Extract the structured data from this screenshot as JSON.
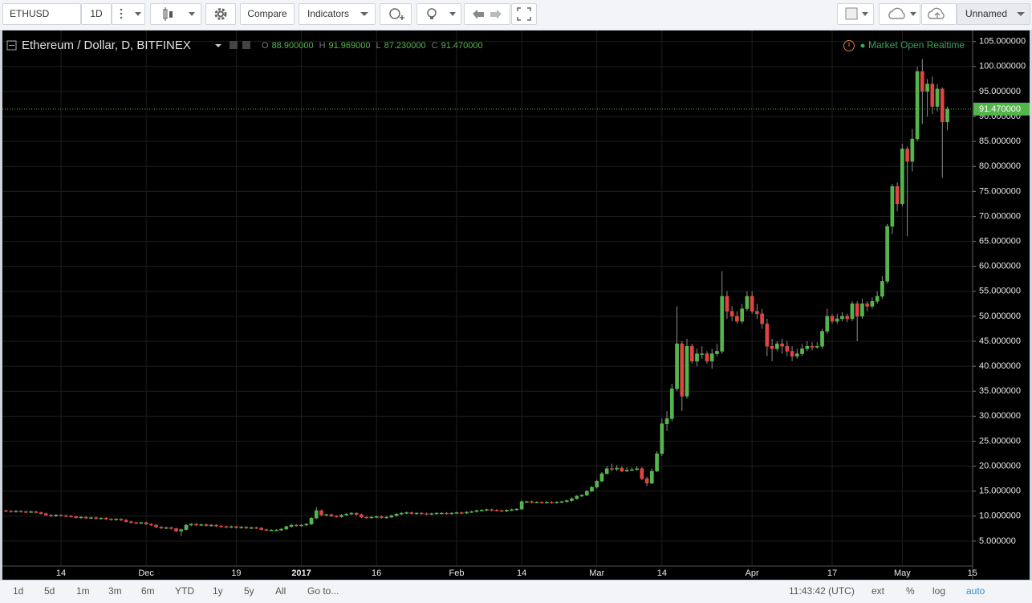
{
  "toolbar": {
    "symbol": "ETHUSD",
    "interval": "1D",
    "compare": "Compare",
    "indicators": "Indicators",
    "layout": "Unnamed"
  },
  "chart_data": {
    "type": "candlestick",
    "title": "Ethereum / Dollar, D, BITFINEX",
    "ohlc_header": [
      {
        "key": "O",
        "text": "88.900000"
      },
      {
        "key": "H",
        "text": "91.969000"
      },
      {
        "key": "L",
        "text": "87.230000"
      },
      {
        "key": "C",
        "text": "91.470000"
      }
    ],
    "status": "Market Open Realtime",
    "up_color": "#53b54b",
    "down_color": "#e04343",
    "wick_color": "#8c8c8c",
    "grid": true,
    "last_price": {
      "value": 91.47,
      "label": "91.470000"
    },
    "ylim": [
      0,
      107.2
    ],
    "yticks": [
      {
        "value": 5,
        "label": "5.000000"
      },
      {
        "value": 10,
        "label": "10.000000"
      },
      {
        "value": 15,
        "label": "15.000000"
      },
      {
        "value": 20,
        "label": "20.000000"
      },
      {
        "value": 25,
        "label": "25.000000"
      },
      {
        "value": 30,
        "label": "30.000000"
      },
      {
        "value": 35,
        "label": "35.000000"
      },
      {
        "value": 40,
        "label": "40.000000"
      },
      {
        "value": 45,
        "label": "45.000000"
      },
      {
        "value": 50,
        "label": "50.000000"
      },
      {
        "value": 55,
        "label": "55.000000"
      },
      {
        "value": 60,
        "label": "60.000000"
      },
      {
        "value": 65,
        "label": "65.000000"
      },
      {
        "value": 70,
        "label": "70.000000"
      },
      {
        "value": 75,
        "label": "75.000000"
      },
      {
        "value": 80,
        "label": "80.000000"
      },
      {
        "value": 85,
        "label": "85.000000"
      },
      {
        "value": 90,
        "label": "90.000000"
      },
      {
        "value": 95,
        "label": "95.000000"
      },
      {
        "value": 100,
        "label": "100.000000"
      },
      {
        "value": 105,
        "label": "105.000000"
      }
    ],
    "categories": [
      null,
      null,
      null,
      null,
      null,
      null,
      null,
      null,
      null,
      null,
      null,
      "14",
      null,
      null,
      null,
      null,
      null,
      null,
      null,
      null,
      null,
      null,
      null,
      null,
      null,
      null,
      null,
      null,
      "Dec",
      null,
      null,
      null,
      null,
      null,
      null,
      null,
      null,
      null,
      null,
      null,
      null,
      null,
      null,
      null,
      null,
      null,
      "19",
      null,
      null,
      null,
      null,
      null,
      null,
      null,
      null,
      null,
      null,
      null,
      null,
      "2017",
      null,
      null,
      null,
      null,
      null,
      null,
      null,
      null,
      null,
      null,
      null,
      null,
      null,
      null,
      "16",
      null,
      null,
      null,
      null,
      null,
      null,
      null,
      null,
      null,
      null,
      null,
      null,
      null,
      null,
      null,
      "Feb",
      null,
      null,
      null,
      null,
      null,
      null,
      null,
      null,
      null,
      null,
      null,
      null,
      "14",
      null,
      null,
      null,
      null,
      null,
      null,
      null,
      null,
      null,
      null,
      null,
      null,
      null,
      null,
      "Mar",
      null,
      null,
      null,
      null,
      null,
      null,
      null,
      null,
      null,
      null,
      null,
      null,
      "14",
      null,
      null,
      null,
      null,
      null,
      null,
      null,
      null,
      null,
      null,
      null,
      null,
      null,
      null,
      null,
      null,
      null,
      "Apr",
      null,
      null,
      null,
      null,
      null,
      null,
      null,
      null,
      null,
      null,
      null,
      null,
      null,
      null,
      null,
      "17",
      null,
      null,
      null,
      null,
      null,
      null,
      null,
      null,
      null,
      null,
      null,
      null,
      null,
      "May",
      null,
      null,
      null,
      null,
      null,
      null,
      null,
      null,
      null,
      null,
      null,
      null,
      null,
      "15"
    ],
    "open": [
      11.1,
      11.0,
      10.9,
      11.0,
      10.9,
      10.8,
      10.9,
      10.7,
      10.5,
      10.2,
      10.0,
      10.2,
      10.1,
      10.0,
      9.9,
      9.7,
      9.8,
      9.6,
      9.7,
      9.5,
      9.6,
      9.4,
      9.3,
      9.4,
      9.2,
      8.9,
      8.7,
      8.6,
      8.7,
      8.4,
      8.2,
      7.8,
      7.6,
      7.7,
      7.5,
      7.0,
      7.3,
      8.2,
      8.4,
      8.2,
      8.3,
      8.1,
      8.2,
      8.0,
      7.9,
      7.8,
      7.9,
      7.7,
      7.8,
      7.6,
      7.7,
      7.6,
      7.3,
      7.2,
      7.2,
      7.2,
      7.4,
      7.9,
      8.2,
      8.1,
      8.2,
      8.4,
      9.6,
      11.1,
      10.2,
      10.3,
      10.0,
      9.9,
      10.2,
      10.4,
      10.6,
      10.3,
      9.8,
      9.7,
      9.8,
      9.9,
      9.7,
      9.8,
      10.1,
      10.4,
      10.6,
      10.7,
      10.5,
      10.6,
      10.5,
      10.4,
      10.5,
      10.6,
      10.6,
      10.5,
      10.6,
      10.7,
      10.6,
      10.8,
      10.9,
      11.1,
      11.2,
      11.3,
      11.2,
      11.1,
      11.0,
      11.2,
      11.3,
      11.4,
      12.9,
      12.9,
      12.8,
      12.8,
      12.7,
      12.8,
      12.7,
      12.8,
      12.9,
      13.1,
      13.5,
      14.0,
      14.2,
      15.0,
      15.8,
      17.0,
      18.5,
      19.5,
      19.4,
      19.6,
      19.0,
      19.2,
      19.3,
      19.5,
      17.5,
      16.6,
      19.0,
      22.5,
      28.5,
      29.5,
      35.5,
      44.5,
      34.0,
      44.0,
      41.0,
      42.5,
      42.5,
      41.0,
      42.5,
      43.0,
      54.0,
      51.0,
      50.0,
      49.0,
      51.5,
      54.0,
      51.0,
      50.5,
      48.5,
      44.0,
      43.5,
      44.5,
      44.0,
      43.0,
      42.0,
      42.5,
      43.5,
      44.0,
      43.8,
      44.0,
      47.0,
      50.0,
      49.0,
      49.5,
      50.0,
      49.5,
      52.5,
      50.0,
      52.5,
      52.0,
      53.0,
      54.0,
      57.0,
      68.0,
      76.0,
      72.5,
      83.5,
      81.0,
      85.5,
      99.0,
      95.0,
      96.5,
      92.0,
      95.5,
      88.9,
      null,
      null,
      null,
      null,
      null
    ],
    "high": [
      11.3,
      11.2,
      11.2,
      11.2,
      11.1,
      11.1,
      11.1,
      10.9,
      10.7,
      10.4,
      10.4,
      10.4,
      10.3,
      10.2,
      10.1,
      10.0,
      10.0,
      9.9,
      9.9,
      9.8,
      9.8,
      9.6,
      9.6,
      9.6,
      9.4,
      9.1,
      8.9,
      8.9,
      8.9,
      8.6,
      8.4,
      8.0,
      7.9,
      7.9,
      7.7,
      7.5,
      8.4,
      8.6,
      8.6,
      8.5,
      8.5,
      8.4,
      8.4,
      8.2,
      8.1,
      8.1,
      8.1,
      8.0,
      8.0,
      7.9,
      7.9,
      7.8,
      7.5,
      7.4,
      7.4,
      7.6,
      8.1,
      8.4,
      8.4,
      8.4,
      8.6,
      9.8,
      11.8,
      11.3,
      10.5,
      10.5,
      10.2,
      10.4,
      10.6,
      10.8,
      10.8,
      10.5,
      10.0,
      10.0,
      10.1,
      10.1,
      10.0,
      10.3,
      10.6,
      10.8,
      10.9,
      10.9,
      10.8,
      10.8,
      10.7,
      10.7,
      10.8,
      10.8,
      10.8,
      10.8,
      10.9,
      10.9,
      11.0,
      11.1,
      11.3,
      11.4,
      11.5,
      11.5,
      11.4,
      11.3,
      11.4,
      11.5,
      11.6,
      13.2,
      13.1,
      13.1,
      13.0,
      13.0,
      13.0,
      13.0,
      13.0,
      13.1,
      13.3,
      13.7,
      14.2,
      14.4,
      15.2,
      16.0,
      17.3,
      18.8,
      20.0,
      20.5,
      20.2,
      20.0,
      19.8,
      19.7,
      20.0,
      19.8,
      17.9,
      19.5,
      23.0,
      29.5,
      31.0,
      36.5,
      52.0,
      45.0,
      45.5,
      44.5,
      43.5,
      44.0,
      43.0,
      43.5,
      44.5,
      59.0,
      55.0,
      52.0,
      51.0,
      52.5,
      55.0,
      55.0,
      52.5,
      51.5,
      49.5,
      45.5,
      45.0,
      45.5,
      45.0,
      44.0,
      43.5,
      44.5,
      45.0,
      44.8,
      44.8,
      47.5,
      51.5,
      50.5,
      50.5,
      50.8,
      50.5,
      53.0,
      53.0,
      53.5,
      53.0,
      53.8,
      55.0,
      58.0,
      68.5,
      76.5,
      76.8,
      84.5,
      84.0,
      87.5,
      100.0,
      101.5,
      97.5,
      98.0,
      96.5,
      95.8,
      91.969,
      null,
      null,
      null,
      null,
      null
    ],
    "low": [
      10.8,
      10.7,
      10.7,
      10.7,
      10.6,
      10.6,
      10.5,
      10.3,
      10.0,
      9.8,
      9.8,
      9.9,
      9.8,
      9.7,
      9.5,
      9.5,
      9.4,
      9.4,
      9.3,
      9.3,
      9.2,
      9.1,
      9.1,
      9.0,
      8.7,
      8.5,
      8.4,
      8.4,
      8.2,
      8.0,
      7.6,
      7.4,
      7.4,
      7.3,
      6.8,
      6.0,
      7.1,
      8.0,
      8.0,
      8.0,
      7.9,
      7.9,
      7.8,
      7.7,
      7.6,
      7.6,
      7.5,
      7.5,
      7.4,
      7.4,
      7.4,
      7.1,
      7.0,
      7.0,
      7.0,
      7.0,
      7.2,
      7.7,
      7.9,
      7.9,
      8.0,
      8.2,
      9.4,
      10.0,
      10.0,
      9.8,
      9.7,
      9.7,
      10.0,
      10.2,
      10.1,
      9.6,
      9.5,
      9.5,
      9.6,
      9.5,
      9.5,
      9.6,
      9.9,
      10.2,
      10.4,
      10.3,
      10.3,
      10.3,
      10.2,
      10.2,
      10.3,
      10.4,
      10.3,
      10.3,
      10.4,
      10.4,
      10.4,
      10.6,
      10.7,
      10.9,
      11.0,
      11.0,
      10.9,
      10.8,
      10.8,
      11.0,
      11.1,
      11.2,
      12.7,
      12.6,
      12.6,
      12.5,
      12.5,
      12.5,
      12.5,
      12.6,
      12.7,
      12.9,
      13.3,
      13.8,
      14.0,
      14.8,
      15.5,
      16.8,
      18.3,
      19.0,
      19.0,
      18.8,
      18.8,
      19.0,
      19.1,
      17.2,
      16.0,
      16.4,
      18.8,
      22.0,
      27.0,
      29.0,
      35.0,
      31.0,
      33.5,
      40.5,
      40.0,
      41.5,
      40.5,
      39.5,
      42.0,
      42.5,
      49.5,
      49.0,
      48.5,
      48.5,
      51.0,
      50.5,
      49.5,
      47.5,
      42.0,
      41.0,
      43.0,
      42.5,
      42.0,
      41.0,
      41.5,
      42.0,
      43.0,
      43.2,
      43.5,
      43.5,
      46.5,
      48.5,
      48.5,
      49.0,
      48.8,
      49.0,
      45.0,
      49.5,
      51.0,
      51.5,
      52.5,
      53.5,
      56.5,
      66.5,
      71.0,
      72.0,
      66.0,
      79.0,
      85.0,
      88.5,
      90.0,
      90.5,
      91.0,
      77.7,
      87.23,
      null,
      null,
      null,
      null,
      null
    ],
    "close": [
      11.0,
      10.9,
      11.0,
      10.9,
      10.8,
      10.9,
      10.7,
      10.5,
      10.2,
      10.0,
      10.2,
      10.1,
      10.0,
      9.9,
      9.7,
      9.8,
      9.6,
      9.7,
      9.5,
      9.6,
      9.4,
      9.3,
      9.4,
      9.2,
      8.9,
      8.7,
      8.6,
      8.7,
      8.4,
      8.2,
      7.8,
      7.6,
      7.7,
      7.5,
      7.0,
      7.3,
      8.2,
      8.4,
      8.2,
      8.3,
      8.1,
      8.2,
      8.0,
      7.9,
      7.8,
      7.9,
      7.7,
      7.8,
      7.6,
      7.7,
      7.6,
      7.3,
      7.2,
      7.2,
      7.2,
      7.4,
      7.9,
      8.2,
      8.1,
      8.2,
      8.4,
      9.6,
      11.1,
      10.2,
      10.3,
      10.0,
      9.9,
      10.2,
      10.4,
      10.6,
      10.3,
      9.8,
      9.7,
      9.8,
      9.9,
      9.7,
      9.8,
      10.1,
      10.4,
      10.6,
      10.7,
      10.5,
      10.6,
      10.5,
      10.4,
      10.5,
      10.6,
      10.6,
      10.5,
      10.6,
      10.7,
      10.6,
      10.8,
      10.9,
      11.1,
      11.2,
      11.3,
      11.2,
      11.1,
      11.0,
      11.2,
      11.3,
      11.4,
      12.9,
      12.9,
      12.8,
      12.8,
      12.7,
      12.8,
      12.7,
      12.8,
      12.9,
      13.1,
      13.5,
      14.0,
      14.2,
      15.0,
      15.8,
      17.0,
      18.5,
      19.5,
      19.4,
      19.6,
      19.0,
      19.2,
      19.3,
      19.5,
      17.5,
      16.6,
      19.0,
      22.5,
      28.5,
      29.5,
      35.5,
      44.5,
      34.0,
      44.0,
      41.0,
      42.5,
      42.5,
      41.0,
      42.5,
      43.0,
      54.0,
      51.0,
      50.0,
      49.0,
      51.5,
      54.0,
      51.0,
      50.5,
      48.5,
      44.0,
      43.5,
      44.5,
      44.0,
      43.0,
      42.0,
      42.5,
      43.5,
      44.0,
      43.8,
      44.0,
      47.0,
      50.0,
      49.0,
      49.5,
      50.0,
      49.5,
      52.5,
      50.0,
      52.5,
      52.0,
      53.0,
      54.0,
      57.0,
      68.0,
      76.0,
      72.5,
      83.5,
      81.0,
      85.5,
      99.0,
      95.0,
      96.5,
      92.0,
      95.5,
      88.9,
      91.47,
      null,
      null,
      null,
      null,
      null
    ]
  },
  "status_bar": {
    "ranges": [
      "1d",
      "5d",
      "1m",
      "3m",
      "6m",
      "YTD",
      "1y",
      "5y",
      "All"
    ],
    "goto": "Go to...",
    "clock": "11:43:42 (UTC)",
    "options": [
      "ext",
      "%",
      "log",
      "auto"
    ]
  }
}
